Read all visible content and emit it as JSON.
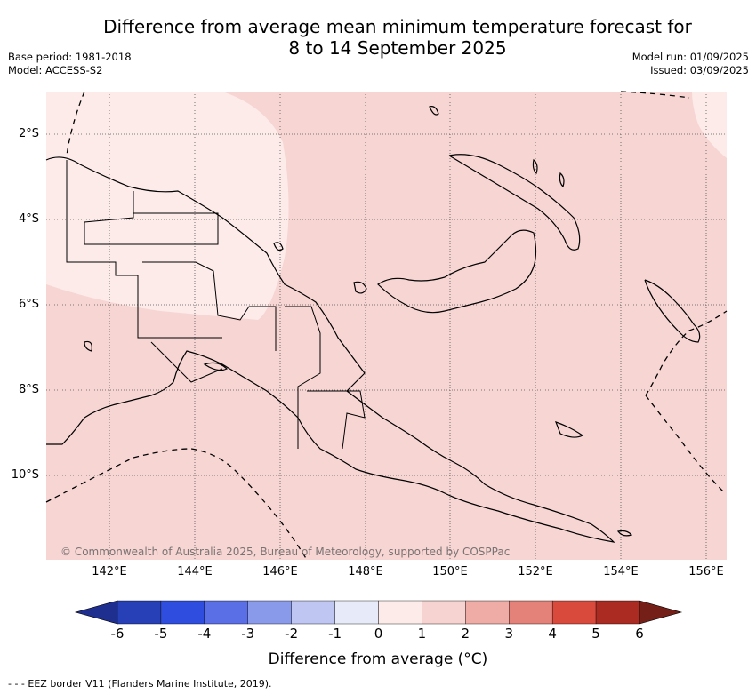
{
  "title_line1": "Difference from average mean minimum temperature forecast for",
  "title_line2": "8 to 14 September 2025",
  "base_period": "Base period: 1981-2018",
  "model": "Model: ACCESS-S2",
  "model_run": "Model run: 01/09/2025",
  "issued": "Issued: 03/09/2025",
  "copyright": "© Commonwealth of Australia 2025, Bureau of Meteorology, supported by COSPPac",
  "lon_ticks": [
    "142°E",
    "144°E",
    "146°E",
    "148°E",
    "150°E",
    "152°E",
    "154°E",
    "156°E"
  ],
  "lat_ticks": [
    "2°S",
    "4°S",
    "6°S",
    "8°S",
    "10°S"
  ],
  "colorbar": {
    "label": "Difference from average (°C)",
    "ticks": [
      "-6",
      "-5",
      "-4",
      "-3",
      "-2",
      "-1",
      "0",
      "1",
      "2",
      "3",
      "4",
      "5",
      "6"
    ],
    "colors": [
      "#1f2f8f",
      "#2740b8",
      "#2f4ee0",
      "#5a6fe6",
      "#8a9aeb",
      "#bfc6f2",
      "#e7ebf9",
      "#fcebe8",
      "#f6d3d0",
      "#efaca6",
      "#e48178",
      "#d94a3d",
      "#ab2b22",
      "#742018"
    ]
  },
  "map_fill": {
    "dominant": "#f6d5d3",
    "lighter": "#fcebe9"
  },
  "footer": "- - - EEZ border V11 (Flanders Marine Institute, 2019)."
}
